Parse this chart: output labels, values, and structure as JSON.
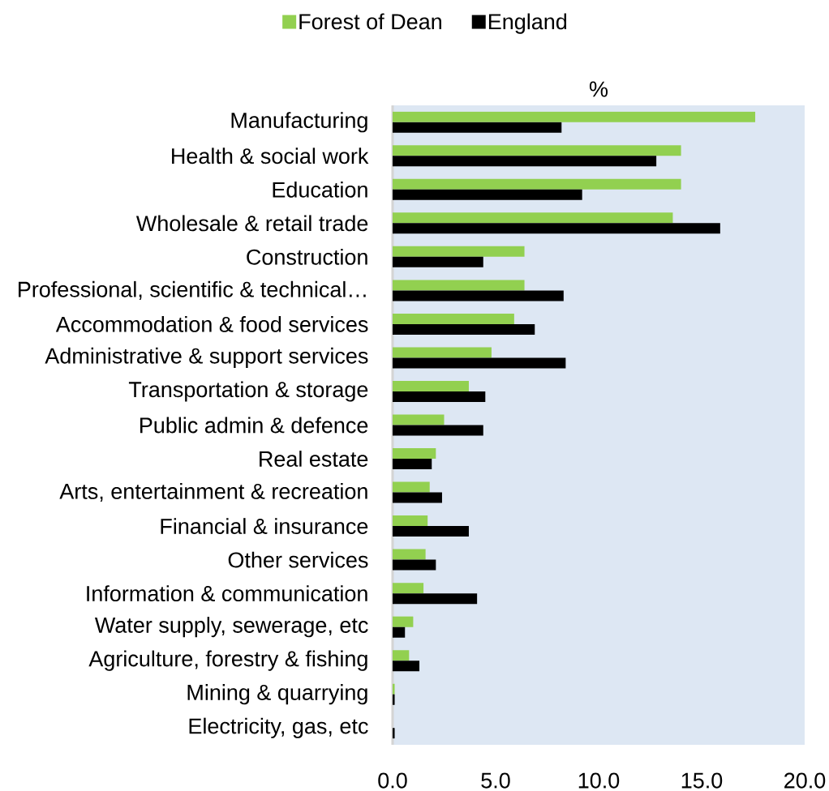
{
  "chart_data": {
    "type": "bar",
    "orientation": "horizontal",
    "xlabel": "%",
    "categories": [
      "Manufacturing",
      "Health & social work",
      "Education",
      "Wholesale & retail trade",
      "Construction",
      "Professional, scientific & technical…",
      "Accommodation & food services",
      "Administrative & support services",
      "Transportation & storage",
      "Public admin & defence",
      "Real estate",
      "Arts, entertainment & recreation",
      "Financial & insurance",
      "Other services",
      "Information & communication",
      "Water supply, sewerage, etc",
      "Agriculture, forestry & fishing",
      "Mining & quarrying",
      "Electricity, gas, etc"
    ],
    "series": [
      {
        "name": "Forest of Dean",
        "color": "#92d050",
        "values": [
          17.6,
          14.0,
          14.0,
          13.6,
          6.4,
          6.4,
          5.9,
          4.8,
          3.7,
          2.5,
          2.1,
          1.8,
          1.7,
          1.6,
          1.5,
          1.0,
          0.8,
          0.1,
          0.0
        ]
      },
      {
        "name": "England",
        "color": "#000000",
        "values": [
          8.2,
          12.8,
          9.2,
          15.9,
          4.4,
          8.3,
          6.9,
          8.4,
          4.5,
          4.4,
          1.9,
          2.4,
          3.7,
          2.1,
          4.1,
          0.6,
          1.3,
          0.1,
          0.1
        ]
      }
    ],
    "xlim": [
      0,
      20
    ],
    "xticks": [
      {
        "value": 0,
        "label": "0.0"
      },
      {
        "value": 5,
        "label": "5.0"
      },
      {
        "value": 10,
        "label": "10.0"
      },
      {
        "value": 15,
        "label": "15.0"
      },
      {
        "value": 20,
        "label": "20.0"
      }
    ],
    "legend": "top"
  }
}
